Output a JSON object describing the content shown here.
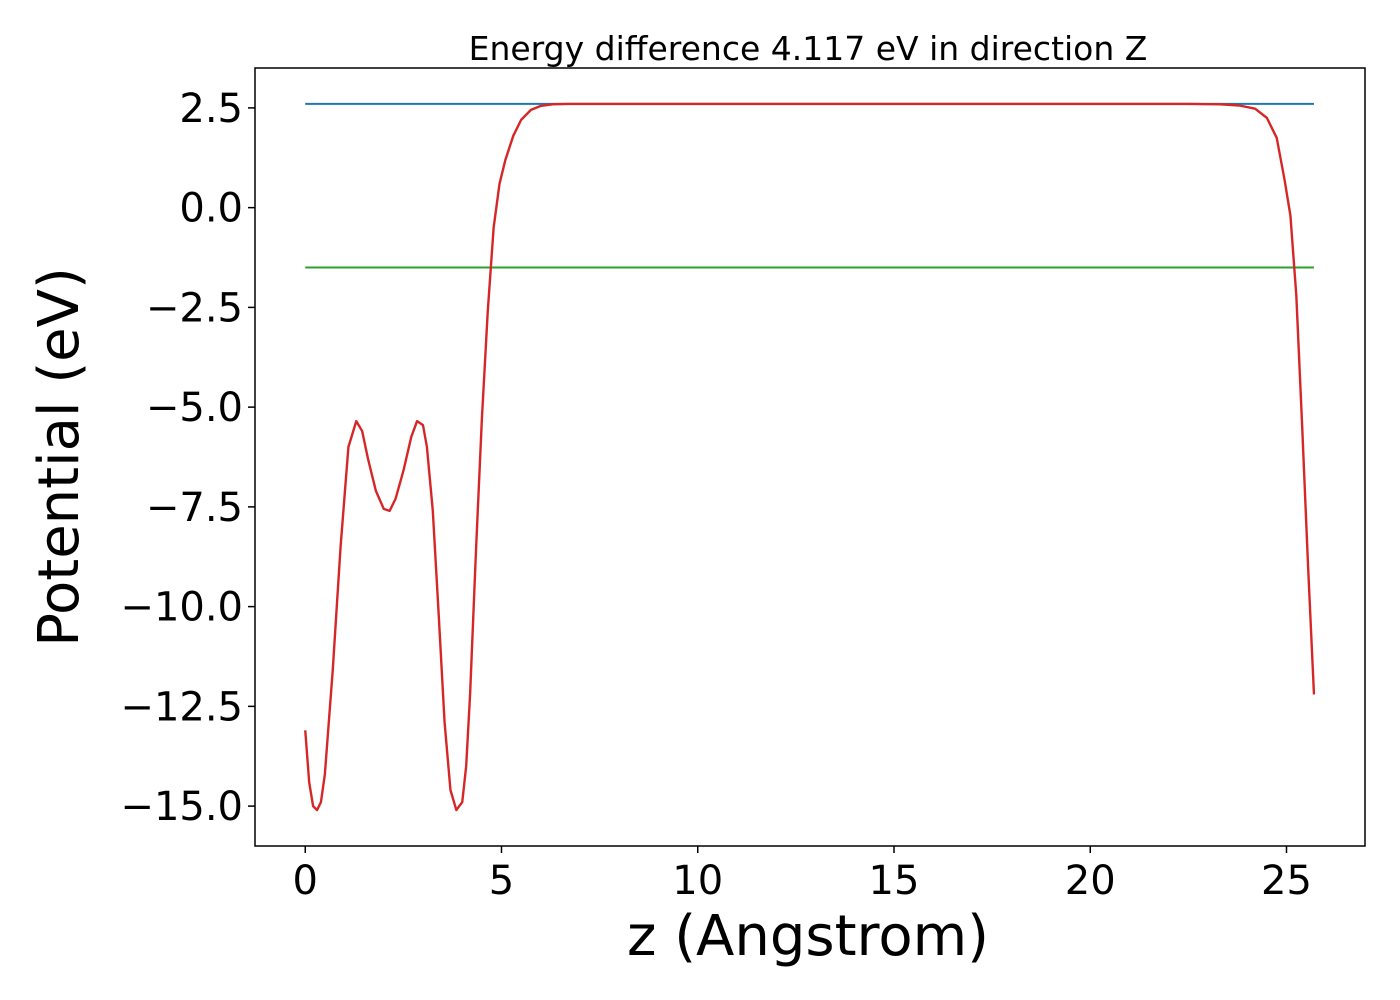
{
  "chart_data": {
    "type": "line",
    "title": "Energy difference 4.117 eV in direction Z",
    "xlabel": "z (Angstrom)",
    "ylabel": "Potential (eV)",
    "xlim": [
      -1.28,
      27.0
    ],
    "ylim": [
      -16.0,
      3.5
    ],
    "grid": false,
    "xticks": [
      0,
      5,
      10,
      15,
      20,
      25
    ],
    "xtick_labels": [
      "0",
      "5",
      "10",
      "15",
      "20",
      "25"
    ],
    "yticks": [
      2.5,
      0.0,
      -2.5,
      -5.0,
      -7.5,
      -10.0,
      -12.5,
      -15.0
    ],
    "ytick_labels": [
      "2.5",
      "0.0",
      "−2.5",
      "−5.0",
      "−7.5",
      "−10.0",
      "−12.5",
      "−15.0"
    ],
    "series": [
      {
        "color": "#1f77b4",
        "x": [
          0,
          25.7
        ],
        "y": [
          2.6,
          2.6
        ]
      },
      {
        "color": "#2ca02c",
        "x": [
          0,
          25.7
        ],
        "y": [
          -1.5,
          -1.5
        ]
      },
      {
        "color": "#d62728",
        "x": [
          0,
          0.1,
          0.2,
          0.3,
          0.4,
          0.5,
          0.7,
          0.9,
          1.1,
          1.3,
          1.45,
          1.6,
          1.8,
          2.0,
          2.15,
          2.3,
          2.5,
          2.7,
          2.85,
          3.0,
          3.1,
          3.25,
          3.4,
          3.55,
          3.7,
          3.85,
          4.0,
          4.1,
          4.2,
          4.35,
          4.5,
          4.65,
          4.8,
          4.95,
          5.1,
          5.3,
          5.5,
          5.75,
          6.0,
          6.3,
          6.7,
          7.5,
          10,
          15,
          20,
          22.5,
          23.3,
          23.8,
          24.2,
          24.5,
          24.75,
          24.95,
          25.1,
          25.25,
          25.4,
          25.55,
          25.7
        ],
        "y": [
          -13.1,
          -14.4,
          -15.0,
          -15.1,
          -14.9,
          -14.2,
          -11.6,
          -8.5,
          -6.0,
          -5.35,
          -5.6,
          -6.3,
          -7.1,
          -7.55,
          -7.6,
          -7.3,
          -6.6,
          -5.75,
          -5.35,
          -5.45,
          -6.0,
          -7.6,
          -10.2,
          -12.9,
          -14.6,
          -15.1,
          -14.9,
          -14.0,
          -12.2,
          -8.6,
          -5.3,
          -2.6,
          -0.5,
          0.6,
          1.2,
          1.8,
          2.2,
          2.45,
          2.55,
          2.59,
          2.6,
          2.6,
          2.6,
          2.6,
          2.6,
          2.6,
          2.59,
          2.56,
          2.48,
          2.25,
          1.75,
          0.7,
          -0.2,
          -2.2,
          -5.5,
          -9.0,
          -12.2
        ]
      }
    ]
  }
}
